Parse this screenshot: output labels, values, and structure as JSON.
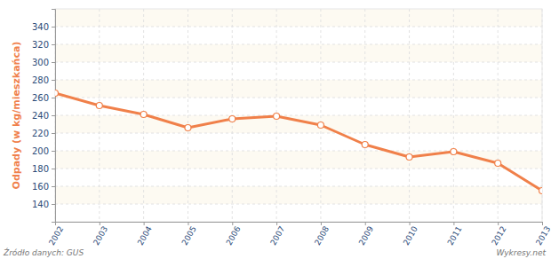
{
  "chart_data": {
    "type": "line",
    "y_label": "Odpady (w kg/mieszkańca)",
    "categories": [
      "2002",
      "2003",
      "2004",
      "2005",
      "2006",
      "2007",
      "2008",
      "2009",
      "2010",
      "2011",
      "2012",
      "2013"
    ],
    "values": [
      265,
      251,
      241,
      226,
      236,
      239,
      229,
      207,
      193,
      199,
      186,
      155
    ],
    "color": "#f0804a",
    "marker": "circle",
    "ylim": [
      120,
      360
    ],
    "yticks": [
      140,
      160,
      180,
      200,
      220,
      240,
      260,
      280,
      300,
      320,
      340
    ],
    "grid": true,
    "annotations": [
      "Źródło danych: GUS",
      "Wykresy.net"
    ]
  }
}
